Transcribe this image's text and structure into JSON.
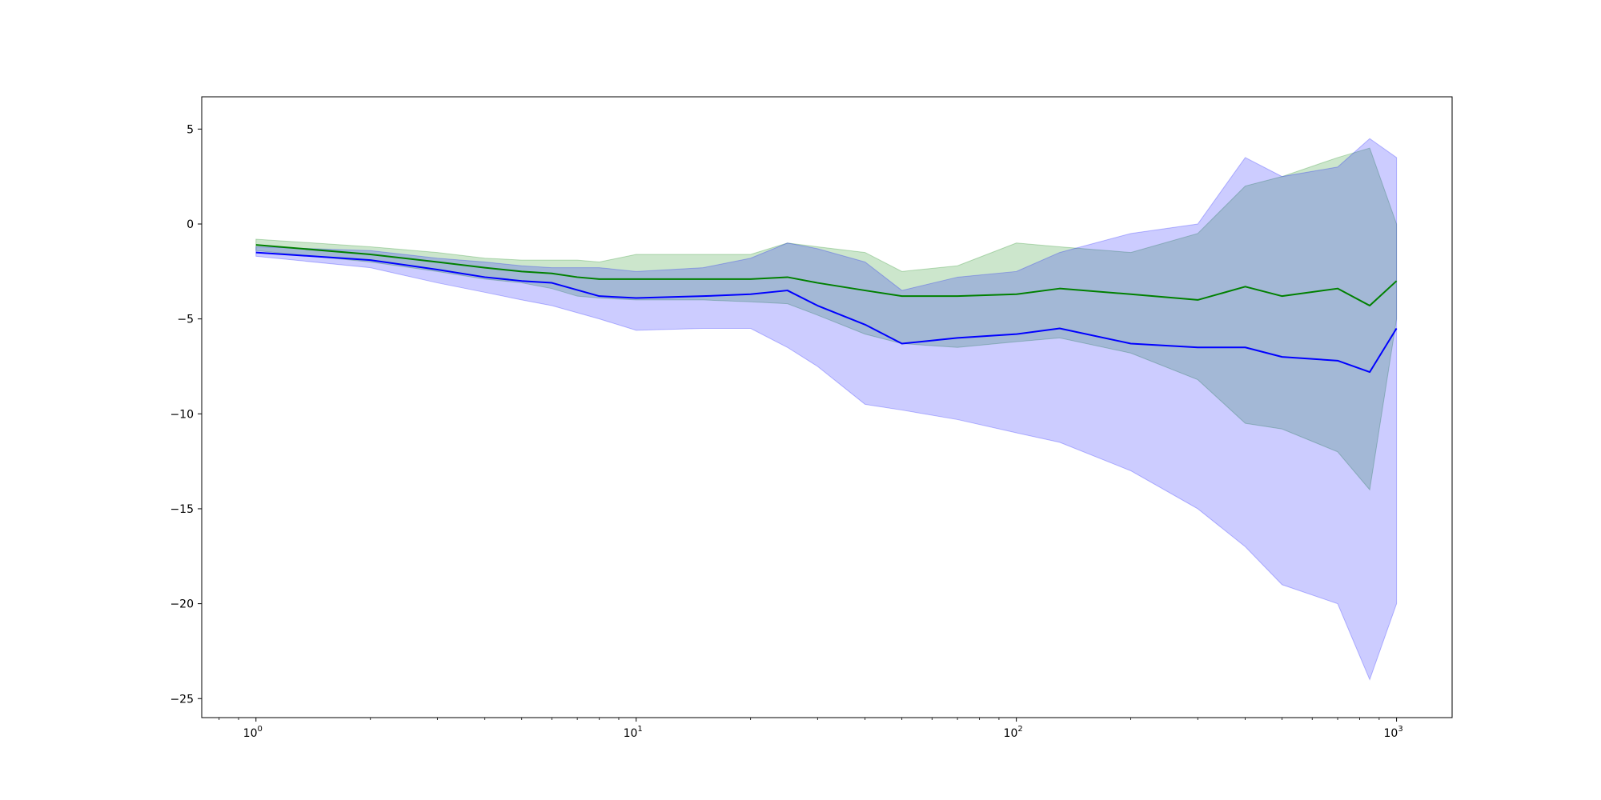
{
  "chart_data": {
    "type": "line",
    "title": "",
    "xlabel": "",
    "ylabel": "",
    "x_scale": "log",
    "xlim": [
      0.72,
      1400
    ],
    "ylim": [
      -26,
      6.7
    ],
    "grid": false,
    "x_ticks": [
      {
        "value": 1,
        "base": "10",
        "exp": "0"
      },
      {
        "value": 10,
        "base": "10",
        "exp": "1"
      },
      {
        "value": 100,
        "base": "10",
        "exp": "2"
      },
      {
        "value": 1000,
        "base": "10",
        "exp": "3"
      }
    ],
    "y_ticks": [
      {
        "value": 5,
        "label": "5"
      },
      {
        "value": 0,
        "label": "0"
      },
      {
        "value": -5,
        "label": "−5"
      },
      {
        "value": -10,
        "label": "−10"
      },
      {
        "value": -15,
        "label": "−15"
      },
      {
        "value": -20,
        "label": "−20"
      },
      {
        "value": -25,
        "label": "−25"
      }
    ],
    "series": [
      {
        "color": "#008000",
        "band_color": "#008000",
        "band_opacity": 0.2,
        "points": [
          [
            1,
            -1.1,
            -0.8,
            -1.4
          ],
          [
            2,
            -1.6,
            -1.2,
            -2.0
          ],
          [
            3,
            -2.0,
            -1.5,
            -2.5
          ],
          [
            4,
            -2.3,
            -1.8,
            -2.9
          ],
          [
            5,
            -2.5,
            -1.9,
            -3.1
          ],
          [
            6,
            -2.6,
            -1.9,
            -3.4
          ],
          [
            7,
            -2.8,
            -1.9,
            -3.8
          ],
          [
            8,
            -2.9,
            -2.0,
            -3.9
          ],
          [
            10,
            -2.9,
            -1.6,
            -4.0
          ],
          [
            15,
            -2.9,
            -1.6,
            -4.0
          ],
          [
            20,
            -2.9,
            -1.6,
            -4.1
          ],
          [
            25,
            -2.8,
            -1.0,
            -4.2
          ],
          [
            30,
            -3.1,
            -1.2,
            -4.8
          ],
          [
            40,
            -3.5,
            -1.5,
            -5.8
          ],
          [
            50,
            -3.8,
            -2.5,
            -6.3
          ],
          [
            70,
            -3.8,
            -2.2,
            -6.5
          ],
          [
            100,
            -3.7,
            -1.0,
            -6.2
          ],
          [
            130,
            -3.4,
            -1.2,
            -6.0
          ],
          [
            200,
            -3.7,
            -1.5,
            -6.8
          ],
          [
            300,
            -4.0,
            -0.5,
            -8.2
          ],
          [
            400,
            -3.3,
            2.0,
            -10.5
          ],
          [
            500,
            -3.8,
            2.5,
            -10.8
          ],
          [
            700,
            -3.4,
            3.5,
            -12.0
          ],
          [
            850,
            -4.3,
            4.0,
            -14.0
          ],
          [
            1000,
            -3.0,
            0.0,
            -5.0
          ]
        ]
      },
      {
        "color": "#0000ff",
        "band_color": "#0000ff",
        "band_opacity": 0.2,
        "points": [
          [
            1,
            -1.5,
            -1.2,
            -1.7
          ],
          [
            2,
            -1.9,
            -1.4,
            -2.3
          ],
          [
            3,
            -2.4,
            -1.8,
            -3.1
          ],
          [
            4,
            -2.8,
            -2.0,
            -3.6
          ],
          [
            5,
            -3.0,
            -2.2,
            -4.0
          ],
          [
            6,
            -3.1,
            -2.3,
            -4.3
          ],
          [
            8,
            -3.8,
            -2.3,
            -5.0
          ],
          [
            10,
            -3.9,
            -2.5,
            -5.6
          ],
          [
            15,
            -3.8,
            -2.3,
            -5.5
          ],
          [
            20,
            -3.7,
            -1.8,
            -5.5
          ],
          [
            25,
            -3.5,
            -1.0,
            -6.5
          ],
          [
            30,
            -4.3,
            -1.3,
            -7.5
          ],
          [
            40,
            -5.3,
            -2.0,
            -9.5
          ],
          [
            50,
            -6.3,
            -3.5,
            -9.8
          ],
          [
            70,
            -6.0,
            -2.8,
            -10.3
          ],
          [
            100,
            -5.8,
            -2.5,
            -11.0
          ],
          [
            130,
            -5.5,
            -1.5,
            -11.5
          ],
          [
            200,
            -6.3,
            -0.5,
            -13.0
          ],
          [
            300,
            -6.5,
            0.0,
            -15.0
          ],
          [
            400,
            -6.5,
            3.5,
            -17.0
          ],
          [
            500,
            -7.0,
            2.5,
            -19.0
          ],
          [
            700,
            -7.2,
            3.0,
            -20.0
          ],
          [
            850,
            -7.8,
            4.5,
            -24.0
          ],
          [
            1000,
            -5.5,
            3.5,
            -20.0
          ]
        ]
      }
    ]
  }
}
